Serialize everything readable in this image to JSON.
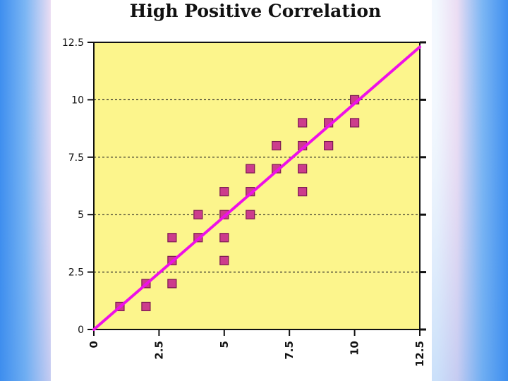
{
  "chart_data": {
    "type": "scatter",
    "title": "High Positive Correlation",
    "xlabel": "",
    "ylabel": "",
    "xlim": [
      0,
      12.5
    ],
    "ylim": [
      0,
      12.5
    ],
    "x_ticks": [
      "0",
      "2.5",
      "5",
      "7.5",
      "10",
      "12.5"
    ],
    "y_ticks": [
      "0",
      "2.5",
      "5",
      "7.5",
      "10",
      "12.5"
    ],
    "grid": "horizontal dashed",
    "legend": "none",
    "points": [
      {
        "x": 1,
        "y": 1
      },
      {
        "x": 2,
        "y": 1
      },
      {
        "x": 2,
        "y": 2
      },
      {
        "x": 3,
        "y": 2
      },
      {
        "x": 3,
        "y": 3
      },
      {
        "x": 3,
        "y": 4
      },
      {
        "x": 4,
        "y": 4
      },
      {
        "x": 4,
        "y": 5
      },
      {
        "x": 5,
        "y": 3
      },
      {
        "x": 5,
        "y": 4
      },
      {
        "x": 5,
        "y": 5
      },
      {
        "x": 5,
        "y": 6
      },
      {
        "x": 6,
        "y": 5
      },
      {
        "x": 6,
        "y": 6
      },
      {
        "x": 6,
        "y": 7
      },
      {
        "x": 7,
        "y": 7
      },
      {
        "x": 7,
        "y": 8
      },
      {
        "x": 8,
        "y": 6
      },
      {
        "x": 8,
        "y": 7
      },
      {
        "x": 8,
        "y": 8
      },
      {
        "x": 8,
        "y": 9
      },
      {
        "x": 9,
        "y": 8
      },
      {
        "x": 9,
        "y": 9
      },
      {
        "x": 10,
        "y": 9
      },
      {
        "x": 10,
        "y": 10
      }
    ],
    "trend_line": {
      "x1": 0,
      "y1": 0,
      "x2": 12.5,
      "y2": 12.3
    },
    "colors": {
      "plot_background": "#fcf58c",
      "point_fill": "#cc3c8c",
      "point_stroke": "#7a1a50",
      "trend_line": "#ee10e8",
      "grid": "#222222"
    }
  }
}
